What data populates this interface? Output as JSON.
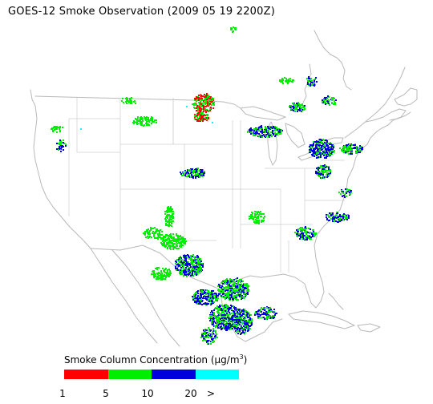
{
  "title": "GOES-12 Smoke Observation (2009 05 19  2200Z)",
  "legend": {
    "title_prefix": "Smoke Column Concentration (",
    "title_unit_base": "μg/m",
    "title_unit_sup": "3",
    "title_suffix": ")",
    "colors": [
      "#ff0000",
      "#00ee00",
      "#0000dd",
      "#00ffff"
    ],
    "ticks": [
      "1",
      "5",
      "10",
      "20",
      ">"
    ]
  },
  "map": {
    "colors": {
      "outline": "#b9b9b9",
      "state_border": "#cfcfcf"
    }
  }
}
